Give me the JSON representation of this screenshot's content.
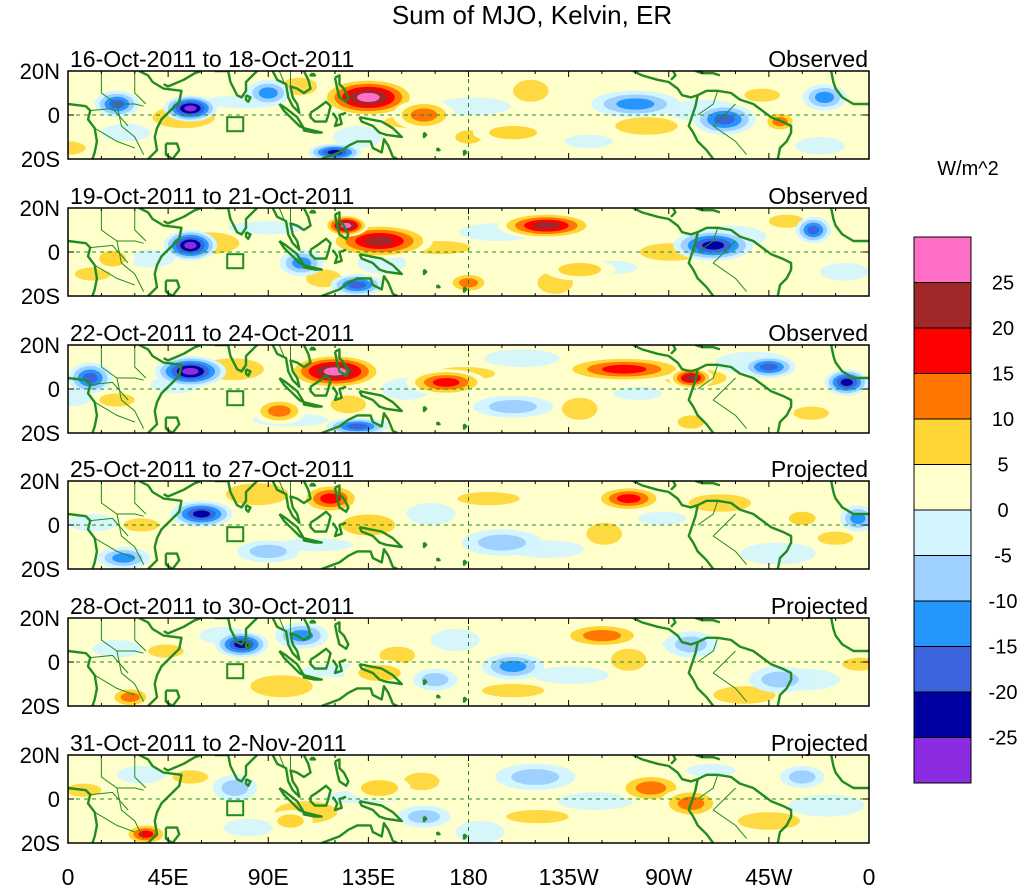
{
  "chart_data": {
    "type": "heatmap",
    "title": "Sum of MJO, Kelvin, ER",
    "units_label": "W/m^2",
    "xlabel": "",
    "ylabel": "",
    "x_ticks": [
      "0",
      "45E",
      "90E",
      "135E",
      "180",
      "135W",
      "90W",
      "45W",
      "0"
    ],
    "x_range_deg": [
      0,
      360
    ],
    "y_ticks": [
      "20N",
      "0",
      "20S"
    ],
    "y_range_deg": [
      -20,
      20
    ],
    "grid": false,
    "colorbar": {
      "placement": "right",
      "levels": [
        25,
        20,
        15,
        10,
        5,
        0,
        -5,
        -10,
        -15,
        -20,
        -25
      ],
      "level_labels": [
        "25",
        "20",
        "15",
        "10",
        "5",
        "0",
        "-5",
        "-10",
        "-15",
        "-20",
        "-25"
      ],
      "colors": [
        "#ff6ec7",
        "#a02828",
        "#ff0000",
        "#ff7700",
        "#ffd533",
        "#ffffcc",
        "#d2f5ff",
        "#9ed1ff",
        "#2696ff",
        "#3c64dc",
        "#0000a0",
        "#8b2be2"
      ]
    },
    "colors": {
      "coastline": "#228b22",
      "reference_lines": "#228b22"
    },
    "panels": [
      {
        "period": "16-Oct-2011 to 18-Oct-2011",
        "status": "Observed",
        "anomalies": [
          {
            "lon": 135,
            "lat": 8,
            "lon_w": 22,
            "lat_w": 9,
            "v": 30
          },
          {
            "lon": 160,
            "lat": 0,
            "lon_w": 14,
            "lat_w": 7,
            "v": 14
          },
          {
            "lon": 180,
            "lat": -10,
            "lon_w": 10,
            "lat_w": 5,
            "v": 10
          },
          {
            "lon": 55,
            "lat": 3,
            "lon_w": 12,
            "lat_w": 6,
            "v": -28
          },
          {
            "lon": 22,
            "lat": 5,
            "lon_w": 10,
            "lat_w": 6,
            "v": -20
          },
          {
            "lon": 90,
            "lat": 10,
            "lon_w": 10,
            "lat_w": 6,
            "v": -14
          },
          {
            "lon": 120,
            "lat": -17,
            "lon_w": 12,
            "lat_w": 4,
            "v": -22
          },
          {
            "lon": 255,
            "lat": 5,
            "lon_w": 20,
            "lat_w": 6,
            "v": -15
          },
          {
            "lon": 295,
            "lat": -2,
            "lon_w": 14,
            "lat_w": 7,
            "v": -16
          },
          {
            "lon": 200,
            "lat": -8,
            "lon_w": 18,
            "lat_w": 5,
            "v": 8
          },
          {
            "lon": 320,
            "lat": -3,
            "lon_w": 8,
            "lat_w": 5,
            "v": 12
          },
          {
            "lon": 340,
            "lat": 8,
            "lon_w": 10,
            "lat_w": 6,
            "v": -12
          }
        ]
      },
      {
        "period": "19-Oct-2011 to 21-Oct-2011",
        "status": "Observed",
        "anomalies": [
          {
            "lon": 140,
            "lat": 5,
            "lon_w": 24,
            "lat_w": 8,
            "v": 22
          },
          {
            "lon": 125,
            "lat": 12,
            "lon_w": 10,
            "lat_w": 5,
            "v": 26
          },
          {
            "lon": 215,
            "lat": 12,
            "lon_w": 22,
            "lat_w": 6,
            "v": 24
          },
          {
            "lon": 55,
            "lat": 3,
            "lon_w": 12,
            "lat_w": 7,
            "v": -28
          },
          {
            "lon": 290,
            "lat": 3,
            "lon_w": 18,
            "lat_w": 7,
            "v": -24
          },
          {
            "lon": 335,
            "lat": 10,
            "lon_w": 8,
            "lat_w": 6,
            "v": -18
          },
          {
            "lon": 130,
            "lat": -15,
            "lon_w": 12,
            "lat_w": 5,
            "v": -20
          },
          {
            "lon": 105,
            "lat": -5,
            "lon_w": 10,
            "lat_w": 6,
            "v": -12
          },
          {
            "lon": 230,
            "lat": -8,
            "lon_w": 16,
            "lat_w": 5,
            "v": 8
          },
          {
            "lon": 180,
            "lat": -14,
            "lon_w": 10,
            "lat_w": 5,
            "v": 12
          },
          {
            "lon": 20,
            "lat": -3,
            "lon_w": 10,
            "lat_w": 6,
            "v": 10
          }
        ]
      },
      {
        "period": "22-Oct-2011 to 24-Oct-2011",
        "status": "Observed",
        "anomalies": [
          {
            "lon": 120,
            "lat": 8,
            "lon_w": 22,
            "lat_w": 8,
            "v": 26
          },
          {
            "lon": 170,
            "lat": 3,
            "lon_w": 18,
            "lat_w": 6,
            "v": 16
          },
          {
            "lon": 250,
            "lat": 9,
            "lon_w": 30,
            "lat_w": 6,
            "v": 20
          },
          {
            "lon": 280,
            "lat": 5,
            "lon_w": 10,
            "lat_w": 5,
            "v": 24
          },
          {
            "lon": 55,
            "lat": 8,
            "lon_w": 16,
            "lat_w": 7,
            "v": -28
          },
          {
            "lon": 10,
            "lat": 5,
            "lon_w": 10,
            "lat_w": 7,
            "v": -20
          },
          {
            "lon": 350,
            "lat": 3,
            "lon_w": 10,
            "lat_w": 6,
            "v": -24
          },
          {
            "lon": 315,
            "lat": 10,
            "lon_w": 12,
            "lat_w": 5,
            "v": -16
          },
          {
            "lon": 130,
            "lat": -17,
            "lon_w": 14,
            "lat_w": 4,
            "v": -20
          },
          {
            "lon": 95,
            "lat": -10,
            "lon_w": 12,
            "lat_w": 6,
            "v": 14
          },
          {
            "lon": 200,
            "lat": -8,
            "lon_w": 18,
            "lat_w": 5,
            "v": -8
          },
          {
            "lon": 280,
            "lat": -15,
            "lon_w": 10,
            "lat_w": 5,
            "v": 10
          }
        ]
      },
      {
        "period": "25-Oct-2011 to 27-Oct-2011",
        "status": "Projected",
        "anomalies": [
          {
            "lon": 60,
            "lat": 5,
            "lon_w": 14,
            "lat_w": 6,
            "v": -24
          },
          {
            "lon": 118,
            "lat": 12,
            "lon_w": 14,
            "lat_w": 7,
            "v": 18
          },
          {
            "lon": 135,
            "lat": 0,
            "lon_w": 20,
            "lat_w": 8,
            "v": 10
          },
          {
            "lon": 252,
            "lat": 12,
            "lon_w": 16,
            "lat_w": 6,
            "v": 18
          },
          {
            "lon": 330,
            "lat": 3,
            "lon_w": 10,
            "lat_w": 5,
            "v": 10
          },
          {
            "lon": 355,
            "lat": 3,
            "lon_w": 8,
            "lat_w": 6,
            "v": -14
          },
          {
            "lon": 195,
            "lat": -8,
            "lon_w": 18,
            "lat_w": 6,
            "v": -10
          },
          {
            "lon": 25,
            "lat": -15,
            "lon_w": 12,
            "lat_w": 5,
            "v": -12
          },
          {
            "lon": 90,
            "lat": -12,
            "lon_w": 14,
            "lat_w": 5,
            "v": -6
          },
          {
            "lon": 220,
            "lat": 10,
            "lon_w": 16,
            "lat_w": 5,
            "v": 5
          }
        ]
      },
      {
        "period": "28-Oct-2011 to 30-Oct-2011",
        "status": "Projected",
        "anomalies": [
          {
            "lon": 78,
            "lat": 8,
            "lon_w": 12,
            "lat_w": 6,
            "v": -22
          },
          {
            "lon": 105,
            "lat": 12,
            "lon_w": 12,
            "lat_w": 6,
            "v": -12
          },
          {
            "lon": 240,
            "lat": 12,
            "lon_w": 20,
            "lat_w": 6,
            "v": 14
          },
          {
            "lon": 140,
            "lat": -5,
            "lon_w": 16,
            "lat_w": 6,
            "v": 8
          },
          {
            "lon": 28,
            "lat": -16,
            "lon_w": 10,
            "lat_w": 5,
            "v": 14
          },
          {
            "lon": 200,
            "lat": -2,
            "lon_w": 14,
            "lat_w": 6,
            "v": -12
          },
          {
            "lon": 280,
            "lat": 8,
            "lon_w": 12,
            "lat_w": 6,
            "v": -10
          },
          {
            "lon": 320,
            "lat": -8,
            "lon_w": 14,
            "lat_w": 6,
            "v": -6
          },
          {
            "lon": 165,
            "lat": -8,
            "lon_w": 10,
            "lat_w": 5,
            "v": -10
          }
        ]
      },
      {
        "period": "31-Oct-2011 to 2-Nov-2011",
        "status": "Projected",
        "anomalies": [
          {
            "lon": 262,
            "lat": 5,
            "lon_w": 16,
            "lat_w": 7,
            "v": 12
          },
          {
            "lon": 280,
            "lat": -2,
            "lon_w": 14,
            "lat_w": 7,
            "v": 12
          },
          {
            "lon": 35,
            "lat": -16,
            "lon_w": 10,
            "lat_w": 5,
            "v": 18
          },
          {
            "lon": 75,
            "lat": 5,
            "lon_w": 10,
            "lat_w": 6,
            "v": -10
          },
          {
            "lon": 140,
            "lat": 5,
            "lon_w": 14,
            "lat_w": 6,
            "v": 8
          },
          {
            "lon": 210,
            "lat": 10,
            "lon_w": 18,
            "lat_w": 6,
            "v": -10
          },
          {
            "lon": 330,
            "lat": 10,
            "lon_w": 10,
            "lat_w": 5,
            "v": -8
          },
          {
            "lon": 160,
            "lat": -8,
            "lon_w": 12,
            "lat_w": 5,
            "v": -8
          },
          {
            "lon": 100,
            "lat": -10,
            "lon_w": 10,
            "lat_w": 5,
            "v": 6
          }
        ]
      }
    ]
  }
}
